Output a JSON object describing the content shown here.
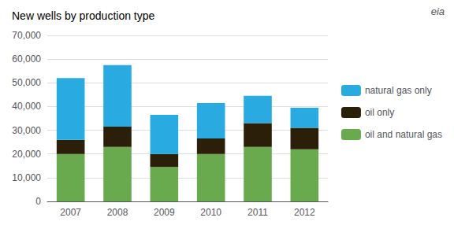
{
  "chart_data": {
    "type": "bar",
    "title": "New wells by production type",
    "categories": [
      "2007",
      "2008",
      "2009",
      "2010",
      "2011",
      "2012"
    ],
    "series": [
      {
        "name": "oil and natural gas",
        "color": "#6aaa4f",
        "values": [
          20000,
          23000,
          14500,
          20000,
          23000,
          22000
        ]
      },
      {
        "name": "oil only",
        "color": "#2b1f0a",
        "values": [
          6000,
          8500,
          5500,
          6500,
          10000,
          9000
        ]
      },
      {
        "name": "natural gas only",
        "color": "#29abe2",
        "values": [
          26000,
          26000,
          16500,
          15000,
          11500,
          8500
        ]
      }
    ],
    "stacked": true,
    "ylim": [
      0,
      70000
    ],
    "yticks": [
      0,
      {
        "value": 10000,
        "label": "10,000"
      },
      {
        "value": 20000,
        "label": "20,000"
      },
      {
        "value": 30000,
        "label": "30,000"
      },
      {
        "value": 40000,
        "label": "40,000"
      },
      {
        "value": 50000,
        "label": "50,000"
      },
      {
        "value": 60000,
        "label": "60,000"
      },
      {
        "value": 70000,
        "label": "70,000"
      }
    ],
    "grid": true,
    "legend": "right",
    "annotations": [
      "eia"
    ]
  }
}
